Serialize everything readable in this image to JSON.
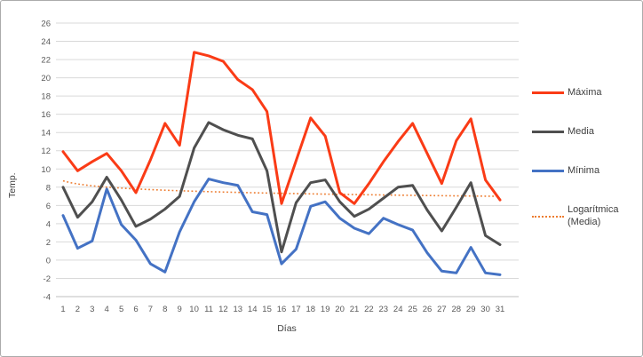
{
  "chart_data": {
    "type": "line",
    "title": "",
    "xlabel": "Días",
    "ylabel": "Temp.",
    "x": [
      1,
      2,
      3,
      4,
      5,
      6,
      7,
      8,
      9,
      10,
      11,
      12,
      13,
      14,
      15,
      16,
      17,
      18,
      19,
      20,
      21,
      22,
      23,
      24,
      25,
      26,
      27,
      28,
      29,
      30,
      31
    ],
    "series": [
      {
        "name": "Máxima",
        "color": "#fa3b16",
        "values": [
          11.9,
          9.8,
          10.8,
          11.7,
          9.8,
          7.4,
          11.0,
          15.0,
          12.6,
          22.8,
          22.4,
          21.8,
          19.8,
          18.7,
          16.3,
          6.2,
          10.9,
          15.6,
          13.6,
          7.4,
          6.2,
          8.4,
          10.8,
          13.0,
          15.0,
          11.7,
          8.4,
          13.1,
          15.5,
          8.8,
          6.6
        ]
      },
      {
        "name": "Media",
        "color": "#4f4f4f",
        "values": [
          8.0,
          4.7,
          6.4,
          9.1,
          6.6,
          3.7,
          4.5,
          5.6,
          7.0,
          12.3,
          15.1,
          14.3,
          13.7,
          13.3,
          9.8,
          0.9,
          6.3,
          8.5,
          8.8,
          6.4,
          4.8,
          5.6,
          6.8,
          8.0,
          8.2,
          5.5,
          3.2,
          5.8,
          8.5,
          2.7,
          1.7
        ]
      },
      {
        "name": "Mínima",
        "color": "#4472c4",
        "values": [
          4.9,
          1.3,
          2.1,
          7.8,
          3.9,
          2.2,
          -0.4,
          -1.3,
          3.1,
          6.4,
          8.9,
          8.5,
          8.2,
          5.3,
          5.0,
          -0.4,
          1.2,
          5.9,
          6.4,
          4.6,
          3.5,
          2.9,
          4.6,
          3.9,
          3.3,
          0.8,
          -1.2,
          -1.4,
          1.4,
          -1.4,
          -1.6
        ]
      }
    ],
    "trendline": {
      "name": "Logarítmica (Media)",
      "color": "#ed7d31",
      "style": "dotted",
      "formula": "y = b + a*ln(x)",
      "a": -0.495,
      "b": 8.7
    },
    "ylim": [
      -4,
      26
    ],
    "ytick_step": 2,
    "grid": "horizontal",
    "gridline_color": "#d9d9d9",
    "axisline_color": "#bfbfbf",
    "legend_position": "right"
  }
}
